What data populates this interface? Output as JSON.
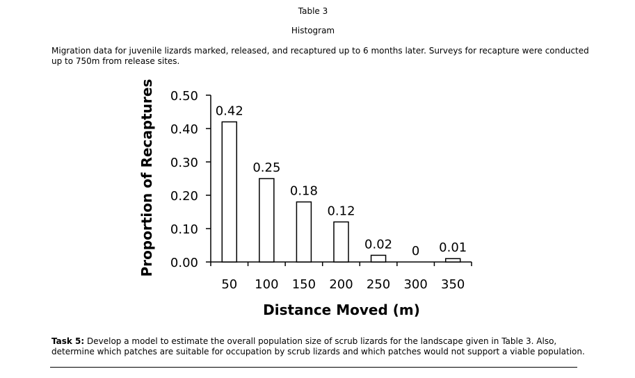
{
  "header": {
    "table_label": "Table 3",
    "chart_kind_label": "Histogram"
  },
  "caption": "Migration data for juvenile lizards marked, released, and recaptured up to 6 months later.  Surveys for recapture were conducted up to 750m from release sites.",
  "task": {
    "label": "Task 5:",
    "text": "  Develop a model to estimate the overall population size of scrub lizards for the landscape given in Table 3.  Also, determine which patches are suitable for occupation by scrub lizards and which patches would not support a viable population."
  },
  "chart_data": {
    "type": "bar",
    "categories": [
      "50",
      "100",
      "150",
      "200",
      "250",
      "300",
      "350"
    ],
    "values": [
      0.42,
      0.25,
      0.18,
      0.12,
      0.02,
      0,
      0.01
    ],
    "data_labels": [
      "0.42",
      "0.25",
      "0.18",
      "0.12",
      "0.02",
      "0",
      "0.01"
    ],
    "xlabel": "Distance Moved (m)",
    "ylabel": "Proportion of Recaptures",
    "ylim": [
      0,
      0.5
    ],
    "yticks": [
      "0.00",
      "0.10",
      "0.20",
      "0.30",
      "0.40",
      "0.50"
    ],
    "grid": false,
    "bar_fill": "#ffffff",
    "bar_stroke": "#000000"
  }
}
